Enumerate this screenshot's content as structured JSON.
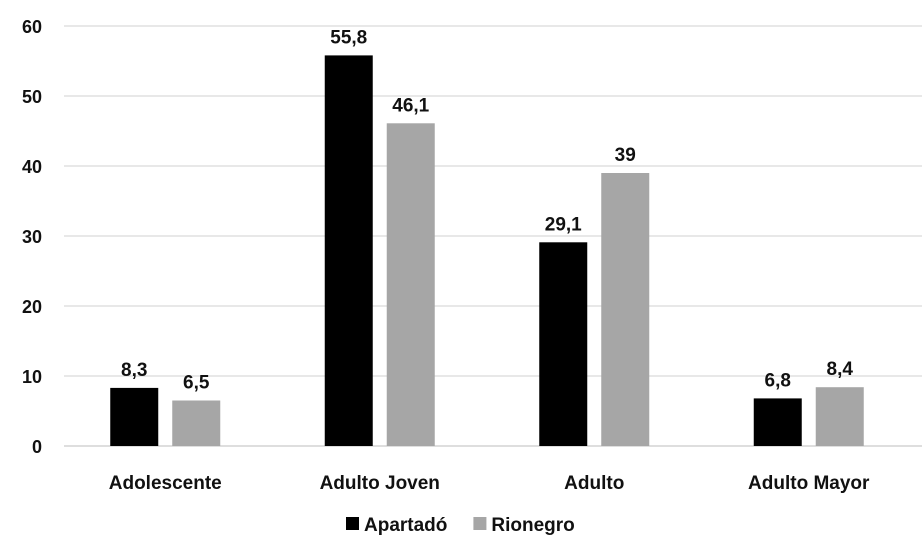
{
  "chart_data": {
    "type": "bar",
    "categories": [
      "Adolescente",
      "Adulto Joven",
      "Adulto",
      "Adulto Mayor"
    ],
    "series": [
      {
        "name": "Apartadó",
        "values": [
          8.3,
          55.8,
          29.1,
          6.8
        ],
        "labels": [
          "8,3",
          "55,8",
          "29,1",
          "6,8"
        ],
        "color": "#000000"
      },
      {
        "name": "Rionegro",
        "values": [
          6.5,
          46.1,
          39,
          8.4
        ],
        "labels": [
          "6,5",
          "46,1",
          "39",
          "8,4"
        ],
        "color": "#a6a6a6"
      }
    ],
    "yticks": [
      0,
      10,
      20,
      30,
      40,
      50,
      60
    ],
    "ylim": [
      0,
      60
    ],
    "grid": true,
    "legend_position": "bottom",
    "title": "",
    "xlabel": "",
    "ylabel": ""
  }
}
